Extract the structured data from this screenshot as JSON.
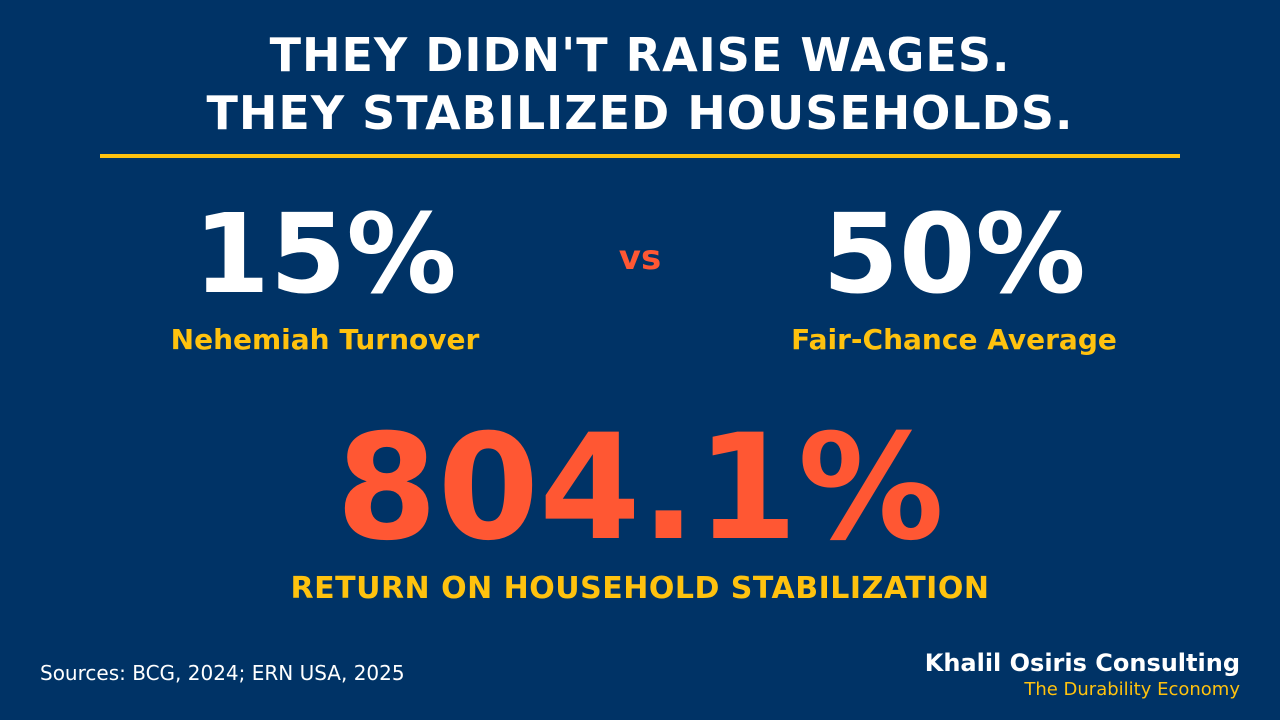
{
  "headline": {
    "line1": "THEY DIDN'T RAISE WAGES.",
    "line2": "THEY STABILIZED HOUSEHOLDS."
  },
  "comparison": {
    "left": {
      "value": "15%",
      "label": "Nehemiah Turnover"
    },
    "separator": "vs",
    "right": {
      "value": "50%",
      "label": "Fair-Chance Average"
    }
  },
  "highlight": {
    "value": "804.1%",
    "label": "RETURN ON HOUSEHOLD STABILIZATION"
  },
  "footer": {
    "sources": "Sources: BCG, 2024; ERN USA, 2025",
    "brand_name": "Khalil Osiris Consulting",
    "tagline": "The Durability Economy"
  },
  "colors": {
    "background": "#003366",
    "accent_yellow": "#FFC20E",
    "accent_orange": "#FF5733",
    "text_white": "#FFFFFF"
  }
}
